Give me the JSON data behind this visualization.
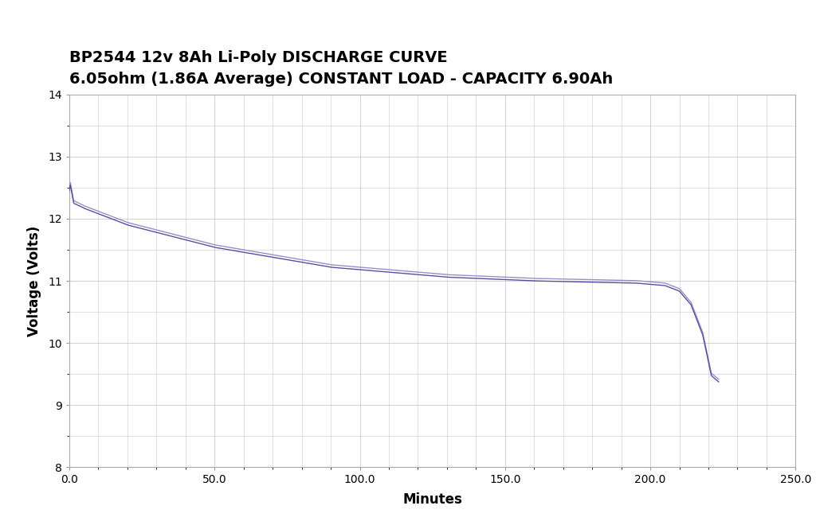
{
  "title": "BP2544 12v 8Ah Li-Poly DISCHARGE CURVE",
  "subtitle": "6.05ohm (1.86A Average) CONSTANT LOAD - CAPACITY 6.90Ah",
  "xlabel": "Minutes",
  "ylabel": "Voltage (Volts)",
  "xlim": [
    0,
    250
  ],
  "ylim": [
    8,
    14
  ],
  "xticks": [
    0.0,
    50.0,
    100.0,
    150.0,
    200.0,
    250.0
  ],
  "yticks": [
    8,
    9,
    10,
    11,
    12,
    13,
    14
  ],
  "line_color1": "#5B4EA0",
  "line_color2": "#9B8EC4",
  "background_color": "#FFFFFF",
  "grid_color": "#C8C8D8",
  "title_fontsize": 14,
  "subtitle_fontsize": 12,
  "axis_label_fontsize": 12,
  "tick_fontsize": 10
}
